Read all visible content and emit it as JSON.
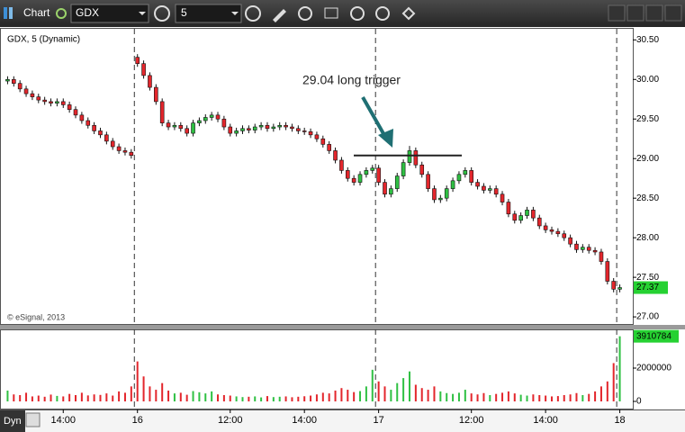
{
  "toolbar": {
    "title": "Chart",
    "symbol": "GDX",
    "interval": "5"
  },
  "chart_data": {
    "type": "candlestick",
    "title": "GDX, 5 (Dynamic)",
    "credit": "© eSignal, 2013",
    "categories": [
      null,
      null,
      null,
      null,
      null,
      null,
      null,
      null,
      null,
      "14:00",
      null,
      null,
      null,
      null,
      null,
      null,
      null,
      null,
      null,
      null,
      null,
      "16",
      null,
      null,
      null,
      null,
      null,
      null,
      null,
      null,
      null,
      null,
      null,
      null,
      null,
      null,
      "12:00",
      null,
      null,
      null,
      null,
      null,
      null,
      null,
      null,
      null,
      null,
      null,
      "14:00",
      null,
      null,
      null,
      null,
      null,
      null,
      null,
      null,
      null,
      null,
      null,
      "17",
      null,
      null,
      null,
      null,
      null,
      null,
      null,
      null,
      null,
      null,
      null,
      null,
      null,
      null,
      "12:00",
      null,
      null,
      null,
      null,
      null,
      null,
      null,
      null,
      null,
      null,
      null,
      "14:00",
      null,
      null,
      null,
      null,
      null,
      null,
      null,
      null,
      null,
      null,
      null,
      "18"
    ],
    "open": [
      29.98,
      30.0,
      29.95,
      29.88,
      29.82,
      29.78,
      29.74,
      29.72,
      29.7,
      29.72,
      29.68,
      29.62,
      29.55,
      29.48,
      29.42,
      29.35,
      29.3,
      29.22,
      29.15,
      29.1,
      29.08,
      30.28,
      30.2,
      30.05,
      29.9,
      29.72,
      29.45,
      29.4,
      29.42,
      29.38,
      29.32,
      29.45,
      29.48,
      29.52,
      29.55,
      29.5,
      29.4,
      29.32,
      29.35,
      29.38,
      29.36,
      29.4,
      29.42,
      29.38,
      29.4,
      29.42,
      29.4,
      29.38,
      29.35,
      29.34,
      29.3,
      29.25,
      29.18,
      29.1,
      28.98,
      28.85,
      28.75,
      28.7,
      28.8,
      28.85,
      28.88,
      28.7,
      28.55,
      28.62,
      28.78,
      28.95,
      29.1,
      28.92,
      28.8,
      28.62,
      28.48,
      28.5,
      28.62,
      28.72,
      28.8,
      28.85,
      28.7,
      28.65,
      28.6,
      28.62,
      28.55,
      28.45,
      28.3,
      28.22,
      28.28,
      28.35,
      28.25,
      28.15,
      28.1,
      28.08,
      28.05,
      28.0,
      27.92,
      27.85,
      27.88,
      27.84,
      27.82,
      27.7,
      27.45,
      27.35
    ],
    "high": [
      30.04,
      30.04,
      29.99,
      29.92,
      29.86,
      29.82,
      29.78,
      29.76,
      29.76,
      29.76,
      29.72,
      29.66,
      29.59,
      29.52,
      29.46,
      29.39,
      29.34,
      29.26,
      29.19,
      29.14,
      29.12,
      30.32,
      30.24,
      30.09,
      29.94,
      29.76,
      29.49,
      29.46,
      29.46,
      29.42,
      29.49,
      29.52,
      29.56,
      29.59,
      29.59,
      29.54,
      29.44,
      29.39,
      29.42,
      29.42,
      29.44,
      29.46,
      29.46,
      29.44,
      29.46,
      29.46,
      29.44,
      29.42,
      29.39,
      29.38,
      29.34,
      29.29,
      29.22,
      29.14,
      29.02,
      28.89,
      28.79,
      28.84,
      28.89,
      28.92,
      28.92,
      28.74,
      28.66,
      28.82,
      28.99,
      29.16,
      29.14,
      28.96,
      28.84,
      28.66,
      28.54,
      28.66,
      28.76,
      28.84,
      28.89,
      28.89,
      28.74,
      28.69,
      28.66,
      28.66,
      28.59,
      28.49,
      28.34,
      28.32,
      28.39,
      28.39,
      28.29,
      28.19,
      28.14,
      28.12,
      28.09,
      28.04,
      27.96,
      27.92,
      27.92,
      27.88,
      27.86,
      27.74,
      27.49,
      27.41
    ],
    "low": [
      29.94,
      29.91,
      29.84,
      29.78,
      29.74,
      29.7,
      29.68,
      29.66,
      29.66,
      29.64,
      29.58,
      29.51,
      29.44,
      29.38,
      29.31,
      29.26,
      29.18,
      29.11,
      29.06,
      29.04,
      29.0,
      30.16,
      30.01,
      29.86,
      29.68,
      29.41,
      29.36,
      29.36,
      29.34,
      29.28,
      29.28,
      29.41,
      29.44,
      29.48,
      29.46,
      29.36,
      29.28,
      29.28,
      29.31,
      29.32,
      29.32,
      29.36,
      29.34,
      29.34,
      29.36,
      29.36,
      29.34,
      29.31,
      29.3,
      29.26,
      29.21,
      29.14,
      29.06,
      28.94,
      28.81,
      28.71,
      28.66,
      28.66,
      28.76,
      28.81,
      28.66,
      28.51,
      28.51,
      28.58,
      28.74,
      28.91,
      28.88,
      28.76,
      28.58,
      28.44,
      28.44,
      28.46,
      28.58,
      28.68,
      28.76,
      28.66,
      28.61,
      28.56,
      28.56,
      28.51,
      28.41,
      28.26,
      28.18,
      28.18,
      28.24,
      28.21,
      28.11,
      28.06,
      28.04,
      28.01,
      27.96,
      27.88,
      27.81,
      27.81,
      27.8,
      27.78,
      27.66,
      27.41,
      27.31,
      27.31
    ],
    "close": [
      30.0,
      29.95,
      29.88,
      29.82,
      29.78,
      29.74,
      29.72,
      29.7,
      29.72,
      29.68,
      29.62,
      29.55,
      29.48,
      29.42,
      29.35,
      29.3,
      29.22,
      29.15,
      29.1,
      29.08,
      29.04,
      30.2,
      30.05,
      29.9,
      29.72,
      29.45,
      29.4,
      29.42,
      29.38,
      29.32,
      29.45,
      29.48,
      29.52,
      29.55,
      29.5,
      29.4,
      29.32,
      29.35,
      29.38,
      29.36,
      29.4,
      29.42,
      29.38,
      29.4,
      29.42,
      29.4,
      29.38,
      29.35,
      29.34,
      29.3,
      29.25,
      29.18,
      29.1,
      28.98,
      28.85,
      28.75,
      28.7,
      28.8,
      28.85,
      28.88,
      28.7,
      28.55,
      28.62,
      28.78,
      28.95,
      29.1,
      28.92,
      28.8,
      28.62,
      28.48,
      28.5,
      28.62,
      28.72,
      28.8,
      28.85,
      28.7,
      28.65,
      28.6,
      28.62,
      28.55,
      28.45,
      28.3,
      28.22,
      28.28,
      28.35,
      28.25,
      28.15,
      28.1,
      28.08,
      28.05,
      28.0,
      27.92,
      27.85,
      27.88,
      27.84,
      27.82,
      27.7,
      27.45,
      27.35,
      27.37
    ],
    "up_color": "#2fc043",
    "down_color": "#e3262c",
    "ylim": [
      26.91,
      30.64
    ],
    "yticks": [
      {
        "value": 27,
        "label": "27.00"
      },
      {
        "value": 27.5,
        "label": "27.50"
      },
      {
        "value": 28,
        "label": "28.00"
      },
      {
        "value": 28.5,
        "label": "28.50"
      },
      {
        "value": 29,
        "label": "29.00"
      },
      {
        "value": 29.5,
        "label": "29.50"
      },
      {
        "value": 30,
        "label": "30.00"
      },
      {
        "value": 30.5,
        "label": "30.50"
      }
    ],
    "annotation": {
      "text": "29.04 long trigger",
      "value": 29.04
    },
    "volume": {
      "values": [
        650000,
        420000,
        380000,
        520000,
        300000,
        350000,
        280000,
        410000,
        330000,
        300000,
        450000,
        380000,
        520000,
        360000,
        420000,
        390000,
        480000,
        350000,
        600000,
        520000,
        900000,
        2400000,
        1500000,
        900000,
        700000,
        1100000,
        650000,
        480000,
        520000,
        400000,
        620000,
        550000,
        480000,
        600000,
        420000,
        380000,
        350000,
        300000,
        260000,
        280000,
        300000,
        240000,
        320000,
        260000,
        280000,
        300000,
        250000,
        280000,
        310000,
        350000,
        420000,
        520000,
        480000,
        650000,
        800000,
        700000,
        560000,
        620000,
        900000,
        1900000,
        1200000,
        900000,
        700000,
        1100000,
        1400000,
        1800000,
        1000000,
        800000,
        700000,
        900000,
        600000,
        500000,
        450000,
        520000,
        700000,
        480000,
        420000,
        500000,
        380000,
        450000,
        520000,
        600000,
        480000,
        400000,
        350000,
        420000,
        380000,
        350000,
        300000,
        320000,
        380000,
        420000,
        500000,
        380000,
        450000,
        600000,
        900000,
        1200000,
        2300000,
        3910784
      ],
      "ylim": [
        -486000,
        4324000
      ],
      "yticks": [
        0,
        2000000
      ]
    }
  },
  "footer": {
    "mode": "Dyn"
  }
}
